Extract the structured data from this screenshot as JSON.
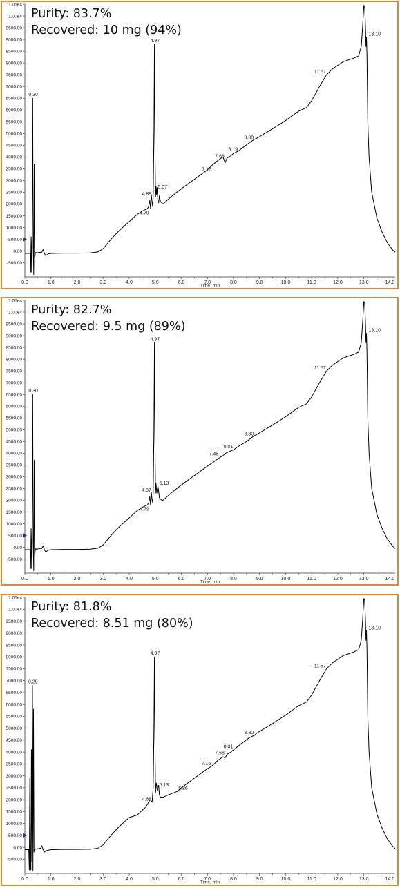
{
  "chart_data": [
    {
      "type": "line",
      "annotations": [
        "Purity: 83.7%",
        "Recovered: 10 mg (94%)"
      ],
      "xlabel": "Time, min",
      "xlim": [
        0,
        14.2
      ],
      "ylim": [
        -1100,
        10500
      ],
      "x_ticks": [
        "0.0",
        "1.0",
        "2.0",
        "3.0",
        "4.0",
        "5.0",
        "6.0",
        "7.0",
        "8.0",
        "9.0",
        "10.0",
        "11.0",
        "12.0",
        "13.0",
        "14.0"
      ],
      "y_ticks": [
        "1.05e4",
        "1.00e4",
        "9500.00",
        "9000.00",
        "8500.00",
        "8000.00",
        "7500.00",
        "7000.00",
        "6500.00",
        "6000.00",
        "5500.00",
        "5000.00",
        "4500.00",
        "4000.00",
        "3500.00",
        "3000.00",
        "2500.00",
        "2000.00",
        "1500.00",
        "1000.00",
        "500.00",
        "0.00",
        "-500.00"
      ],
      "peak_labels": [
        {
          "label": "0.30",
          "x": 0.3,
          "y": 6500
        },
        {
          "label": "4.79",
          "x": 4.79,
          "y": 1500
        },
        {
          "label": "4.88",
          "x": 4.88,
          "y": 2300
        },
        {
          "label": "4.97",
          "x": 4.97,
          "y": 8800
        },
        {
          "label": "5.07",
          "x": 5.07,
          "y": 2600
        },
        {
          "label": "7.18",
          "x": 7.18,
          "y": 3350
        },
        {
          "label": "7.68",
          "x": 7.68,
          "y": 3900
        },
        {
          "label": "8.19",
          "x": 8.19,
          "y": 4200
        },
        {
          "label": "8.80",
          "x": 8.8,
          "y": 4700
        },
        {
          "label": "11.57",
          "x": 11.57,
          "y": 7500
        },
        {
          "label": "13.10",
          "x": 13.1,
          "y": 9100
        }
      ],
      "series": [
        {
          "x": [
            0,
            0.2,
            0.22,
            0.24,
            0.26,
            0.28,
            0.3,
            0.32,
            0.34,
            0.36,
            0.38,
            0.4,
            0.42,
            0.45,
            0.5,
            0.55,
            0.6,
            0.65,
            0.7,
            0.75,
            0.8,
            0.9,
            1.0,
            1.5,
            2.0,
            2.5,
            2.8,
            3.0,
            3.3,
            3.6,
            4.0,
            4.3,
            4.5,
            4.6,
            4.7,
            4.75,
            4.79,
            4.82,
            4.85,
            4.88,
            4.9,
            4.92,
            4.95,
            4.97,
            4.99,
            5.01,
            5.03,
            5.05,
            5.07,
            5.1,
            5.13,
            5.16,
            5.2,
            5.25,
            5.3,
            5.4,
            5.6,
            6.0,
            6.5,
            7.0,
            7.18,
            7.4,
            7.6,
            7.68,
            7.75,
            7.9,
            8.0,
            8.19,
            8.3,
            8.6,
            8.8,
            8.9,
            9.5,
            10.0,
            10.5,
            10.8,
            11.0,
            11.3,
            11.57,
            11.8,
            12.2,
            12.6,
            12.8,
            12.9,
            12.95,
            13.0,
            13.03,
            13.06,
            13.08,
            13.1,
            13.12,
            13.15,
            13.2,
            13.3,
            13.5,
            13.7,
            13.9,
            14.1,
            14.2
          ],
          "y": [
            -100,
            -100,
            -900,
            600,
            -900,
            900,
            6500,
            200,
            -1000,
            3700,
            -300,
            -100,
            -60,
            -80,
            -70,
            -60,
            -50,
            -50,
            60,
            -100,
            -200,
            -120,
            -100,
            -90,
            -90,
            -80,
            -40,
            100,
            500,
            850,
            1250,
            1550,
            1700,
            1750,
            1800,
            1900,
            2150,
            1800,
            2400,
            2050,
            1900,
            2300,
            5000,
            8800,
            4500,
            2300,
            2750,
            2400,
            2700,
            2150,
            2050,
            2350,
            2100,
            2050,
            2000,
            2100,
            2300,
            2650,
            3050,
            3450,
            3650,
            3850,
            4000,
            3750,
            3950,
            4050,
            4150,
            4250,
            4350,
            4600,
            4750,
            4800,
            5200,
            5550,
            5950,
            6100,
            6400,
            7000,
            7500,
            7750,
            8050,
            8200,
            8300,
            8700,
            9500,
            10450,
            10400,
            9600,
            8700,
            9100,
            8300,
            5500,
            4000,
            2500,
            1400,
            800,
            350,
            50,
            -50
          ]
        }
      ]
    },
    {
      "type": "line",
      "annotations": [
        "Purity: 82.7%",
        "Recovered: 9.5 mg (89%)"
      ],
      "xlabel": "Time, min",
      "xlim": [
        0,
        14.2
      ],
      "ylim": [
        -1100,
        10500
      ],
      "x_ticks": [
        "0.0",
        "1.0",
        "2.0",
        "3.0",
        "4.0",
        "5.0",
        "6.0",
        "7.0",
        "8.0",
        "9.0",
        "10.0",
        "11.0",
        "12.0",
        "13.0",
        "14.0"
      ],
      "y_ticks": [
        "1.05e4",
        "1.00e4",
        "9500.00",
        "9000.00",
        "8500.00",
        "8000.00",
        "7500.00",
        "7000.00",
        "6500.00",
        "6000.00",
        "5500.00",
        "5000.00",
        "4500.00",
        "4000.00",
        "3500.00",
        "3000.00",
        "2500.00",
        "2000.00",
        "1500.00",
        "1000.00",
        "500.00",
        "0.00",
        "-500.00"
      ],
      "peak_labels": [
        {
          "label": "0.30",
          "x": 0.3,
          "y": 6500
        },
        {
          "label": "4.79",
          "x": 4.79,
          "y": 1500
        },
        {
          "label": "4.87",
          "x": 4.87,
          "y": 2300
        },
        {
          "label": "4.97",
          "x": 4.97,
          "y": 8700
        },
        {
          "label": "5.13",
          "x": 5.13,
          "y": 2600
        },
        {
          "label": "7.45",
          "x": 7.45,
          "y": 3850
        },
        {
          "label": "8.01",
          "x": 8.01,
          "y": 4150
        },
        {
          "label": "8.80",
          "x": 8.8,
          "y": 4700
        },
        {
          "label": "11.57",
          "x": 11.57,
          "y": 7500
        },
        {
          "label": "13.10",
          "x": 13.1,
          "y": 9100
        }
      ],
      "series": [
        {
          "x": [
            0,
            0.2,
            0.22,
            0.24,
            0.26,
            0.28,
            0.3,
            0.32,
            0.34,
            0.36,
            0.38,
            0.4,
            0.42,
            0.45,
            0.5,
            0.55,
            0.6,
            0.65,
            0.7,
            0.75,
            0.8,
            0.9,
            1.0,
            1.5,
            2.0,
            2.5,
            2.8,
            3.0,
            3.3,
            3.6,
            4.0,
            4.3,
            4.5,
            4.6,
            4.7,
            4.75,
            4.79,
            4.82,
            4.85,
            4.87,
            4.9,
            4.92,
            4.95,
            4.97,
            4.99,
            5.01,
            5.03,
            5.06,
            5.1,
            5.13,
            5.16,
            5.2,
            5.25,
            5.3,
            5.4,
            5.6,
            6.0,
            6.5,
            7.0,
            7.2,
            7.45,
            7.6,
            7.7,
            7.8,
            8.01,
            8.2,
            8.5,
            8.8,
            8.9,
            9.5,
            10.0,
            10.5,
            10.8,
            11.0,
            11.3,
            11.57,
            11.8,
            12.2,
            12.6,
            12.8,
            12.9,
            12.95,
            13.0,
            13.03,
            13.06,
            13.08,
            13.1,
            13.12,
            13.15,
            13.2,
            13.3,
            13.5,
            13.7,
            13.9,
            14.1,
            14.2
          ],
          "y": [
            -100,
            -100,
            -900,
            800,
            -900,
            900,
            6500,
            200,
            -1000,
            3700,
            -300,
            -100,
            -60,
            -80,
            -70,
            -60,
            -50,
            -50,
            60,
            -100,
            -200,
            -120,
            -100,
            -90,
            -90,
            -80,
            -40,
            100,
            500,
            850,
            1250,
            1550,
            1700,
            1750,
            1800,
            1900,
            2150,
            1800,
            2350,
            2050,
            1900,
            2300,
            5000,
            8700,
            4500,
            2300,
            2700,
            2300,
            2600,
            2400,
            2100,
            2050,
            2000,
            2000,
            2100,
            2300,
            2650,
            3050,
            3450,
            3600,
            3800,
            3900,
            4000,
            4050,
            4150,
            4300,
            4500,
            4750,
            4800,
            5200,
            5550,
            5950,
            6100,
            6400,
            7000,
            7500,
            7750,
            8050,
            8200,
            8300,
            8700,
            9500,
            10450,
            10400,
            9600,
            8700,
            9100,
            8300,
            5500,
            4000,
            2500,
            1400,
            800,
            350,
            50,
            -50
          ]
        }
      ]
    },
    {
      "type": "line",
      "annotations": [
        "Purity: 81.8%",
        "Recovered: 8.51 mg (80%)"
      ],
      "xlabel": "Time, min",
      "xlim": [
        0,
        14.2
      ],
      "ylim": [
        -1100,
        10500
      ],
      "x_ticks": [
        "0.0",
        "1.0",
        "2.0",
        "3.0",
        "4.0",
        "5.0",
        "6.0",
        "7.0",
        "8.0",
        "9.0",
        "10.0",
        "11.0",
        "12.0",
        "13.0",
        "14.0"
      ],
      "y_ticks": [
        "1.05e4",
        "1.00e4",
        "9500.00",
        "9000.00",
        "8500.00",
        "8000.00",
        "7500.00",
        "7000.00",
        "6500.00",
        "6000.00",
        "5500.00",
        "5000.00",
        "4500.00",
        "4000.00",
        "3500.00",
        "3000.00",
        "2500.00",
        "2000.00",
        "1500.00",
        "1000.00",
        "500.00",
        "0.00",
        "-500.00"
      ],
      "peak_labels": [
        {
          "label": "0.29",
          "x": 0.29,
          "y": 6800
        },
        {
          "label": "4.88",
          "x": 4.88,
          "y": 1900
        },
        {
          "label": "4.97",
          "x": 4.97,
          "y": 8000
        },
        {
          "label": "5.13",
          "x": 5.13,
          "y": 2500
        },
        {
          "label": "5.86",
          "x": 5.86,
          "y": 2350
        },
        {
          "label": "7.16",
          "x": 7.16,
          "y": 3400
        },
        {
          "label": "7.68",
          "x": 7.68,
          "y": 3850
        },
        {
          "label": "8.01",
          "x": 8.01,
          "y": 4100
        },
        {
          "label": "8.80",
          "x": 8.8,
          "y": 4700
        },
        {
          "label": "11.57",
          "x": 11.57,
          "y": 7500
        },
        {
          "label": "13.10",
          "x": 13.1,
          "y": 9100
        }
      ],
      "series": [
        {
          "x": [
            0,
            0.15,
            0.17,
            0.19,
            0.21,
            0.23,
            0.25,
            0.27,
            0.29,
            0.31,
            0.33,
            0.35,
            0.37,
            0.4,
            0.45,
            0.5,
            0.55,
            0.6,
            0.65,
            0.7,
            0.75,
            0.8,
            0.9,
            1.0,
            1.5,
            2.0,
            2.5,
            2.8,
            3.0,
            3.3,
            3.6,
            4.0,
            4.3,
            4.5,
            4.6,
            4.7,
            4.8,
            4.88,
            4.92,
            4.95,
            4.97,
            4.99,
            5.01,
            5.04,
            5.08,
            5.13,
            5.16,
            5.2,
            5.3,
            5.5,
            5.86,
            6.0,
            6.5,
            7.0,
            7.16,
            7.4,
            7.6,
            7.68,
            7.75,
            7.9,
            8.01,
            8.3,
            8.6,
            8.8,
            8.9,
            9.5,
            10.0,
            10.5,
            10.8,
            11.0,
            11.3,
            11.57,
            11.8,
            12.2,
            12.6,
            12.8,
            12.9,
            12.95,
            13.0,
            13.03,
            13.06,
            13.08,
            13.1,
            13.12,
            13.15,
            13.2,
            13.3,
            13.5,
            13.7,
            13.9,
            14.1,
            14.2
          ],
          "y": [
            -100,
            -100,
            -950,
            2900,
            -950,
            -950,
            4100,
            -600,
            6800,
            -1000,
            5800,
            -200,
            -100,
            -80,
            -70,
            -60,
            -50,
            -50,
            60,
            -100,
            -200,
            -150,
            -120,
            -100,
            -90,
            -90,
            -80,
            -40,
            100,
            500,
            850,
            1250,
            1350,
            1550,
            1650,
            1800,
            2000,
            1900,
            2500,
            5000,
            8000,
            4500,
            2300,
            2700,
            2400,
            2600,
            2200,
            2100,
            2100,
            2200,
            2350,
            2500,
            2900,
            3300,
            3400,
            3650,
            3800,
            3750,
            3900,
            4000,
            4100,
            4350,
            4600,
            4700,
            4800,
            5200,
            5550,
            5950,
            6100,
            6400,
            7000,
            7500,
            7750,
            8050,
            8200,
            8300,
            8700,
            9500,
            10450,
            10400,
            9600,
            8700,
            9100,
            8300,
            5500,
            4000,
            2500,
            1400,
            800,
            350,
            50,
            -50
          ]
        }
      ]
    }
  ]
}
